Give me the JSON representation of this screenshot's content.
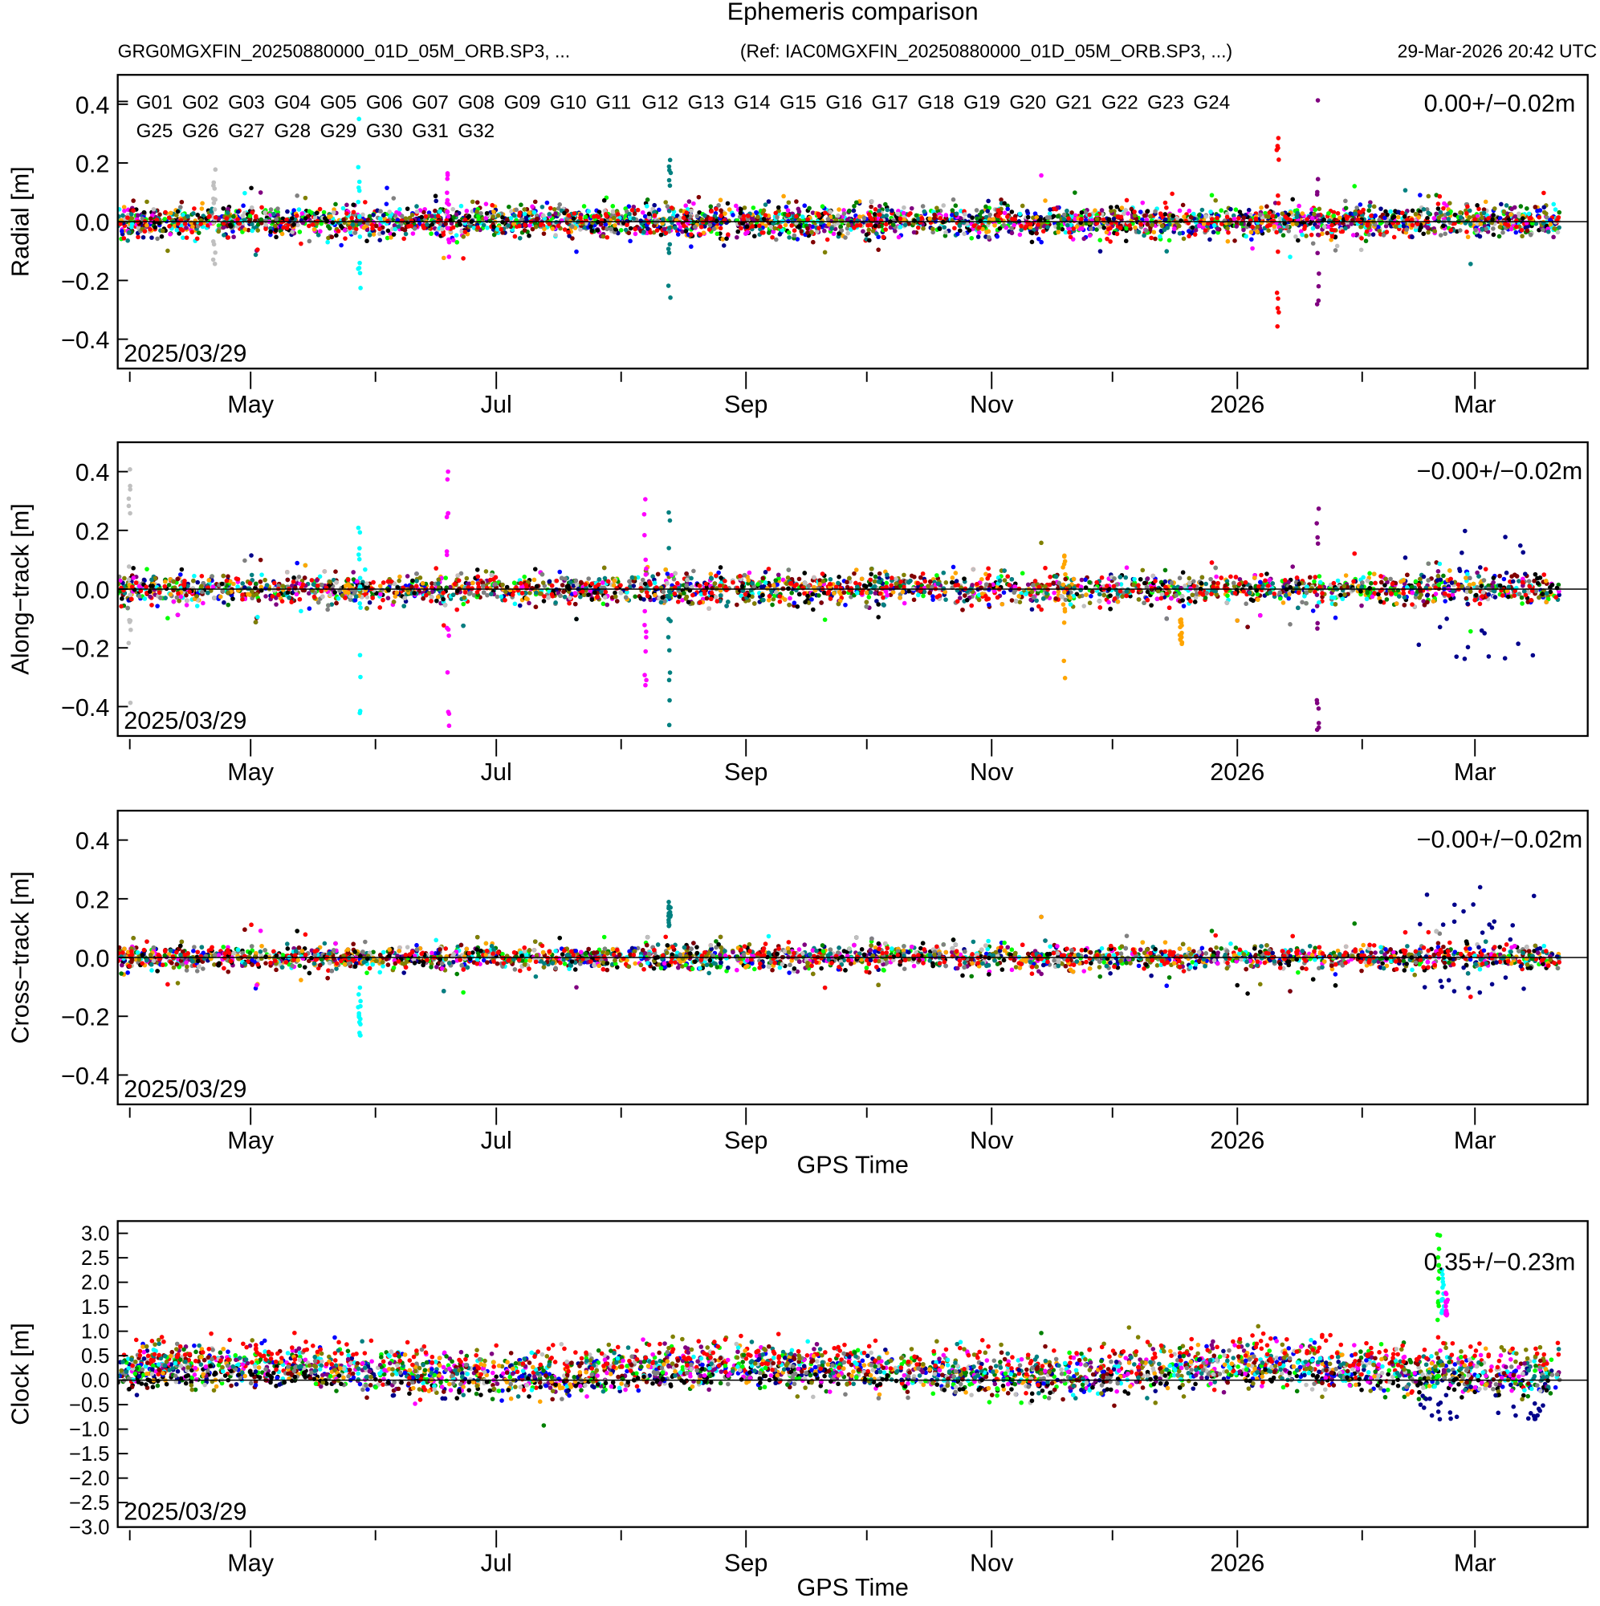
{
  "chart_data": {
    "type": "scatter",
    "title": "Ephemeris comparison",
    "subtitle_left": "GRG0MGXFIN_20250880000_01D_05M_ORB.SP3, ...",
    "subtitle_ref": "(Ref: IAC0MGXFIN_20250880000_01D_05M_ORB.SP3, ...)",
    "generated": "29-Mar-2026 20:42 UTC",
    "start_label": "2025/03/29",
    "x_range_days": [
      0,
      365
    ],
    "x_start_date": "2025-03-29",
    "data_end_day": 358,
    "x_major_ticks": [
      {
        "day": 33,
        "label": "May"
      },
      {
        "day": 94,
        "label": "Jul"
      },
      {
        "day": 156,
        "label": "Sep"
      },
      {
        "day": 217,
        "label": "Nov"
      },
      {
        "day": 278,
        "label": "2026"
      },
      {
        "day": 337,
        "label": "Mar"
      }
    ],
    "x_minor_ticks_days": [
      3,
      64,
      125,
      186,
      247,
      309
    ],
    "xlabel": "GPS Time",
    "legend": [
      {
        "name": "G01",
        "color": "#000000"
      },
      {
        "name": "G02",
        "color": "#ff0000"
      },
      {
        "name": "G03",
        "color": "#0000ff"
      },
      {
        "name": "G04",
        "color": "#00ff00"
      },
      {
        "name": "G05",
        "color": "#00008b"
      },
      {
        "name": "G06",
        "color": "#800080"
      },
      {
        "name": "G07",
        "color": "#008000"
      },
      {
        "name": "G08",
        "color": "#00ffff"
      },
      {
        "name": "G09",
        "color": "#ff00ff"
      },
      {
        "name": "G10",
        "color": "#c0c0c0"
      },
      {
        "name": "G11",
        "color": "#800000"
      },
      {
        "name": "G12",
        "color": "#ffa500"
      },
      {
        "name": "G13",
        "color": "#808080"
      },
      {
        "name": "G14",
        "color": "#808000"
      },
      {
        "name": "G15",
        "color": "#008080"
      },
      {
        "name": "G16",
        "color": "#000000"
      },
      {
        "name": "G17",
        "color": "#ff0000"
      },
      {
        "name": "G18",
        "color": "#0000ff"
      },
      {
        "name": "G19",
        "color": "#00ff00"
      },
      {
        "name": "G20",
        "color": "#00008b"
      },
      {
        "name": "G21",
        "color": "#800080"
      },
      {
        "name": "G22",
        "color": "#008000"
      },
      {
        "name": "G23",
        "color": "#00ffff"
      },
      {
        "name": "G24",
        "color": "#ff00ff"
      },
      {
        "name": "G25",
        "color": "#c0c0c0"
      },
      {
        "name": "G26",
        "color": "#800000"
      },
      {
        "name": "G27",
        "color": "#ffa500"
      },
      {
        "name": "G28",
        "color": "#808080"
      },
      {
        "name": "G29",
        "color": "#808000"
      },
      {
        "name": "G30",
        "color": "#008080"
      },
      {
        "name": "G31",
        "color": "#000000"
      },
      {
        "name": "G32",
        "color": "#ff0000"
      }
    ],
    "panels": [
      {
        "id": "radial",
        "ylabel": "Radial [m]",
        "ylim": [
          -0.5,
          0.5
        ],
        "yticks": [
          {
            "v": 0.4,
            "label": "0.4"
          },
          {
            "v": 0.2,
            "label": "0.2"
          },
          {
            "v": 0,
            "label": "0.0"
          },
          {
            "v": -0.2,
            "label": "−0.2"
          },
          {
            "v": -0.4,
            "label": "−0.4"
          }
        ],
        "stat": "0.00+/−0.02m",
        "sigma": 0.025,
        "show_xlabel": false,
        "spikes": [
          {
            "sat": "G10",
            "day": 24,
            "range": [
              -0.2,
              0.18
            ]
          },
          {
            "sat": "G08",
            "day": 60,
            "range": [
              -0.25,
              0.35
            ]
          },
          {
            "sat": "G09",
            "day": 82,
            "range": [
              -0.17,
              0.18
            ]
          },
          {
            "sat": "G15",
            "day": 137,
            "range": [
              -0.3,
              0.28
            ]
          },
          {
            "sat": "G17",
            "day": 288,
            "range": [
              -0.41,
              0.34
            ]
          },
          {
            "sat": "G21",
            "day": 298,
            "range": [
              -0.36,
              0.42
            ]
          }
        ]
      },
      {
        "id": "along",
        "ylabel": "Along−track [m]",
        "ylim": [
          -0.5,
          0.5
        ],
        "yticks": [
          {
            "v": 0.4,
            "label": "0.4"
          },
          {
            "v": 0.2,
            "label": "0.2"
          },
          {
            "v": 0,
            "label": "0.0"
          },
          {
            "v": -0.2,
            "label": "−0.2"
          },
          {
            "v": -0.4,
            "label": "−0.4"
          }
        ],
        "stat": "−0.00+/−0.02m",
        "sigma": 0.025,
        "show_xlabel": false,
        "spikes": [
          {
            "sat": "G10",
            "day": 3,
            "range": [
              -0.4,
              0.41
            ]
          },
          {
            "sat": "G08",
            "day": 60,
            "range": [
              -0.48,
              0.38
            ]
          },
          {
            "sat": "G09",
            "day": 82,
            "range": [
              -0.48,
              0.41
            ]
          },
          {
            "sat": "G09",
            "day": 131,
            "range": [
              -0.34,
              0.32
            ]
          },
          {
            "sat": "G15",
            "day": 137,
            "range": [
              -0.48,
              0.3
            ]
          },
          {
            "sat": "G12",
            "day": 235,
            "range": [
              -0.32,
              0.23
            ]
          },
          {
            "sat": "G12",
            "day": 264,
            "range": [
              -0.2,
              -0.1
            ]
          },
          {
            "sat": "G21",
            "day": 298,
            "range": [
              -0.48,
              0.48
            ]
          },
          {
            "sat": "G20",
            "day": 330,
            "range": [
              -0.24,
              0.2
            ]
          },
          {
            "sat": "G20",
            "day": 345,
            "range": [
              -0.24,
              0.2
            ]
          }
        ]
      },
      {
        "id": "cross",
        "ylabel": "Cross−track [m]",
        "ylim": [
          -0.5,
          0.5
        ],
        "yticks": [
          {
            "v": 0.4,
            "label": "0.4"
          },
          {
            "v": 0.2,
            "label": "0.2"
          },
          {
            "v": 0,
            "label": "0.0"
          },
          {
            "v": -0.2,
            "label": "−0.2"
          },
          {
            "v": -0.4,
            "label": "−0.4"
          }
        ],
        "stat": "−0.00+/−0.02m",
        "sigma": 0.02,
        "show_xlabel": true,
        "spikes": [
          {
            "sat": "G08",
            "day": 60,
            "range": [
              -0.28,
              -0.1
            ]
          },
          {
            "sat": "G15",
            "day": 137,
            "range": [
              0.1,
              0.2
            ]
          },
          {
            "sat": "G20",
            "day": 330,
            "range": [
              -0.18,
              0.22
            ]
          },
          {
            "sat": "G20",
            "day": 345,
            "range": [
              -0.15,
              0.25
            ]
          }
        ]
      },
      {
        "id": "clock",
        "ylabel": "Clock [m]",
        "ylim": [
          -3.0,
          3.25
        ],
        "yticks": [
          {
            "v": 3,
            "label": "3.0"
          },
          {
            "v": 2.5,
            "label": "2.5"
          },
          {
            "v": 2,
            "label": "2.0"
          },
          {
            "v": 1.5,
            "label": "1.5"
          },
          {
            "v": 1,
            "label": "1.0"
          },
          {
            "v": 0.5,
            "label": "0.5"
          },
          {
            "v": 0,
            "label": "0.0"
          },
          {
            "v": -0.5,
            "label": "−0.5"
          },
          {
            "v": -1,
            "label": "−1.0"
          },
          {
            "v": -1.5,
            "label": "−1.5"
          },
          {
            "v": -2,
            "label": "−2.0"
          },
          {
            "v": -2.5,
            "label": "−2.5"
          },
          {
            "v": -3,
            "label": "−3.0"
          }
        ],
        "stat": "0.35+/−0.23m",
        "sigma": 0.2,
        "show_xlabel": true,
        "biases": {
          "G32": 0.5,
          "G29": 0.3,
          "G14": 0.3,
          "G01": 0.0,
          "G16": 0.0,
          "G31": -0.05
        },
        "spikes": [
          {
            "sat": "G04",
            "day": 328,
            "range": [
              1.2,
              3.0
            ]
          },
          {
            "sat": "G08",
            "day": 329,
            "range": [
              1.2,
              2.3
            ]
          },
          {
            "sat": "G09",
            "day": 330,
            "range": [
              1.3,
              1.8
            ]
          },
          {
            "sat": "G20",
            "day": 330,
            "range": [
              -0.8,
              -0.3
            ]
          },
          {
            "sat": "G20",
            "day": 348,
            "range": [
              -0.8,
              -0.3
            ]
          }
        ]
      }
    ]
  }
}
